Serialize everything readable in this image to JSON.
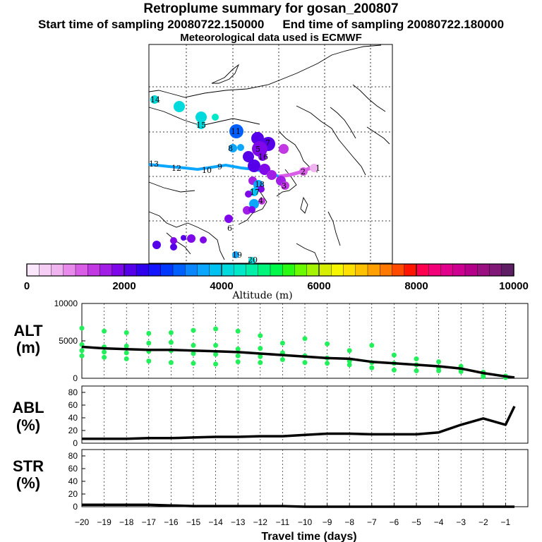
{
  "title": "Retroplume summary for gosan_200807",
  "start_label": "Start time of sampling 20080722.150000",
  "end_label": "End time of sampling 20080722.180000",
  "met_label": "Meteorological data used is ECMWF",
  "colorbar": {
    "label": "Altitude (m)",
    "ticks": [
      "0",
      "2000",
      "4000",
      "6000",
      "8000",
      "10000"
    ],
    "colors": [
      "#fbe7fb",
      "#f5cdf5",
      "#efb3f0",
      "#e78aeb",
      "#d85ee6",
      "#c238e3",
      "#a21ee6",
      "#7f08ea",
      "#5600ea",
      "#2f00ec",
      "#1414ff",
      "#0038ff",
      "#0060ff",
      "#0a86ff",
      "#0aa6ff",
      "#00c2f0",
      "#00dadc",
      "#00e8c8",
      "#00f0a8",
      "#00f57a",
      "#00f84a",
      "#28fa14",
      "#6cfa00",
      "#a4f400",
      "#d6ee00",
      "#f6f600",
      "#ffe000",
      "#ffc200",
      "#ffa000",
      "#ff7800",
      "#ff4a00",
      "#ff1400",
      "#ff0050",
      "#f2007a",
      "#e0008c",
      "#cc0090",
      "#b40088",
      "#9a1080",
      "#801878",
      "#5e1e64"
    ]
  },
  "map_labels": [
    {
      "t": "1",
      "c": "#efb3f0"
    },
    {
      "t": "2",
      "c": "#d85ee6"
    },
    {
      "t": "3",
      "c": "#d85ee6"
    },
    {
      "t": "4",
      "c": "#c238e3"
    },
    {
      "t": "5",
      "c": "#7f08ea"
    },
    {
      "t": "6",
      "c": "#7f08ea"
    },
    {
      "t": "7",
      "c": "#5600ea"
    },
    {
      "t": "8",
      "c": "#0aa6ff"
    },
    {
      "t": "9",
      "c": "#0aa6ff"
    },
    {
      "t": "10",
      "c": "#0aa6ff"
    },
    {
      "t": "11",
      "c": "#0060ff"
    },
    {
      "t": "12",
      "c": "#00e8c8"
    },
    {
      "t": "13",
      "c": "#00e8c8"
    },
    {
      "t": "14",
      "c": "#00e8c8"
    },
    {
      "t": "15",
      "c": "#00dadc"
    },
    {
      "t": "16",
      "c": "#0aa6ff"
    },
    {
      "t": "17",
      "c": "#0aa6ff"
    },
    {
      "t": "18",
      "c": "#0aa6ff"
    },
    {
      "t": "19",
      "c": "#00dadc"
    },
    {
      "t": "20",
      "c": "#00dadc"
    }
  ],
  "panels": {
    "alt_label": "ALT",
    "alt_unit": "(m)",
    "abl_label": "ABL",
    "abl_unit": "(%)",
    "str_label": "STR",
    "str_unit": "(%)"
  },
  "chart_data": [
    {
      "type": "line",
      "title": "ALT",
      "ylabel": "(m)",
      "xlabel": "Travel time (days)",
      "xlim": [
        -20,
        0
      ],
      "ylim": [
        0,
        10000
      ],
      "yticks": [
        0,
        5000,
        10000
      ],
      "x": [
        -20,
        -19,
        -18,
        -17,
        -16,
        -15,
        -14,
        -13,
        -12,
        -11,
        -10,
        -9,
        -8,
        -7,
        -6,
        -5,
        -4,
        -3,
        -2,
        -1,
        -0.6
      ],
      "mean_altitude": [
        4200,
        4000,
        3900,
        3800,
        3800,
        3700,
        3600,
        3500,
        3300,
        3100,
        2900,
        2700,
        2600,
        2200,
        2000,
        1800,
        1600,
        1300,
        700,
        250,
        100
      ],
      "scatter_points": [
        [
          -20,
          6700
        ],
        [
          -20,
          4500
        ],
        [
          -20,
          3700
        ],
        [
          -20,
          3000
        ],
        [
          -19,
          6300
        ],
        [
          -19,
          4200
        ],
        [
          -19,
          3500
        ],
        [
          -19,
          2800
        ],
        [
          -18,
          6100
        ],
        [
          -18,
          4300
        ],
        [
          -18,
          3400
        ],
        [
          -18,
          2600
        ],
        [
          -17,
          6000
        ],
        [
          -17,
          4700
        ],
        [
          -17,
          3600
        ],
        [
          -17,
          2300
        ],
        [
          -16,
          6100
        ],
        [
          -16,
          4800
        ],
        [
          -16,
          3700
        ],
        [
          -16,
          2100
        ],
        [
          -15,
          6400
        ],
        [
          -15,
          4400
        ],
        [
          -15,
          3300
        ],
        [
          -15,
          2000
        ],
        [
          -14,
          6600
        ],
        [
          -14,
          4400
        ],
        [
          -14,
          3200
        ],
        [
          -14,
          1900
        ],
        [
          -13,
          6300
        ],
        [
          -13,
          3900
        ],
        [
          -13,
          3000
        ],
        [
          -13,
          2200
        ],
        [
          -12,
          5700
        ],
        [
          -12,
          4000
        ],
        [
          -12,
          2900
        ],
        [
          -12,
          2100
        ],
        [
          -11,
          4700
        ],
        [
          -11,
          3400
        ],
        [
          -11,
          2500
        ],
        [
          -10,
          5300
        ],
        [
          -10,
          3000
        ],
        [
          -10,
          2100
        ],
        [
          -9,
          4600
        ],
        [
          -9,
          2700
        ],
        [
          -9,
          2000
        ],
        [
          -8,
          3700
        ],
        [
          -8,
          2300
        ],
        [
          -8,
          1800
        ],
        [
          -7,
          4400
        ],
        [
          -7,
          2100
        ],
        [
          -7,
          1400
        ],
        [
          -6,
          3100
        ],
        [
          -6,
          2000
        ],
        [
          -6,
          1100
        ],
        [
          -5,
          2600
        ],
        [
          -5,
          1800
        ],
        [
          -5,
          1000
        ],
        [
          -4,
          2200
        ],
        [
          -4,
          1400
        ],
        [
          -4,
          1000
        ],
        [
          -3,
          1600
        ],
        [
          -3,
          1200
        ],
        [
          -3,
          900
        ],
        [
          -2,
          800
        ],
        [
          -2,
          400
        ],
        [
          -2,
          200
        ],
        [
          -1,
          300
        ],
        [
          -1,
          100
        ]
      ]
    },
    {
      "type": "line",
      "title": "ABL",
      "ylabel": "(%)",
      "xlim": [
        -20,
        0
      ],
      "ylim": [
        0,
        90
      ],
      "yticks": [
        0,
        20,
        40,
        60,
        80
      ],
      "x": [
        -20,
        -19,
        -18,
        -17,
        -16,
        -15,
        -14,
        -13,
        -12,
        -11,
        -10,
        -9,
        -8,
        -7,
        -6,
        -5,
        -4,
        -3,
        -2,
        -1,
        -0.6
      ],
      "values": [
        7,
        7,
        7,
        8,
        8,
        9,
        10,
        10,
        11,
        11,
        13,
        15,
        15,
        14,
        14,
        14,
        17,
        29,
        39,
        29,
        58
      ]
    },
    {
      "type": "line",
      "title": "STR",
      "ylabel": "(%)",
      "xlim": [
        -20,
        0
      ],
      "ylim": [
        0,
        90
      ],
      "yticks": [
        0,
        20,
        40,
        60,
        80
      ],
      "x": [
        -20,
        -19,
        -18,
        -17,
        -16,
        -15,
        -14,
        -13,
        -12,
        -11,
        -10,
        -9,
        -8,
        -7,
        -6,
        -5,
        -4,
        -3,
        -2,
        -1,
        -0.6
      ],
      "values": [
        3,
        3,
        3,
        3,
        2,
        1,
        1,
        1,
        1,
        1,
        0,
        0,
        0,
        0,
        0,
        0,
        0,
        0,
        0,
        0,
        0
      ]
    }
  ],
  "xaxis": {
    "ticks": [
      -20,
      -19,
      -18,
      -17,
      -16,
      -15,
      -14,
      -13,
      -12,
      -11,
      -10,
      -9,
      -8,
      -7,
      -6,
      -5,
      -4,
      -3,
      -2,
      -1
    ],
    "label": "Travel time (days)"
  }
}
